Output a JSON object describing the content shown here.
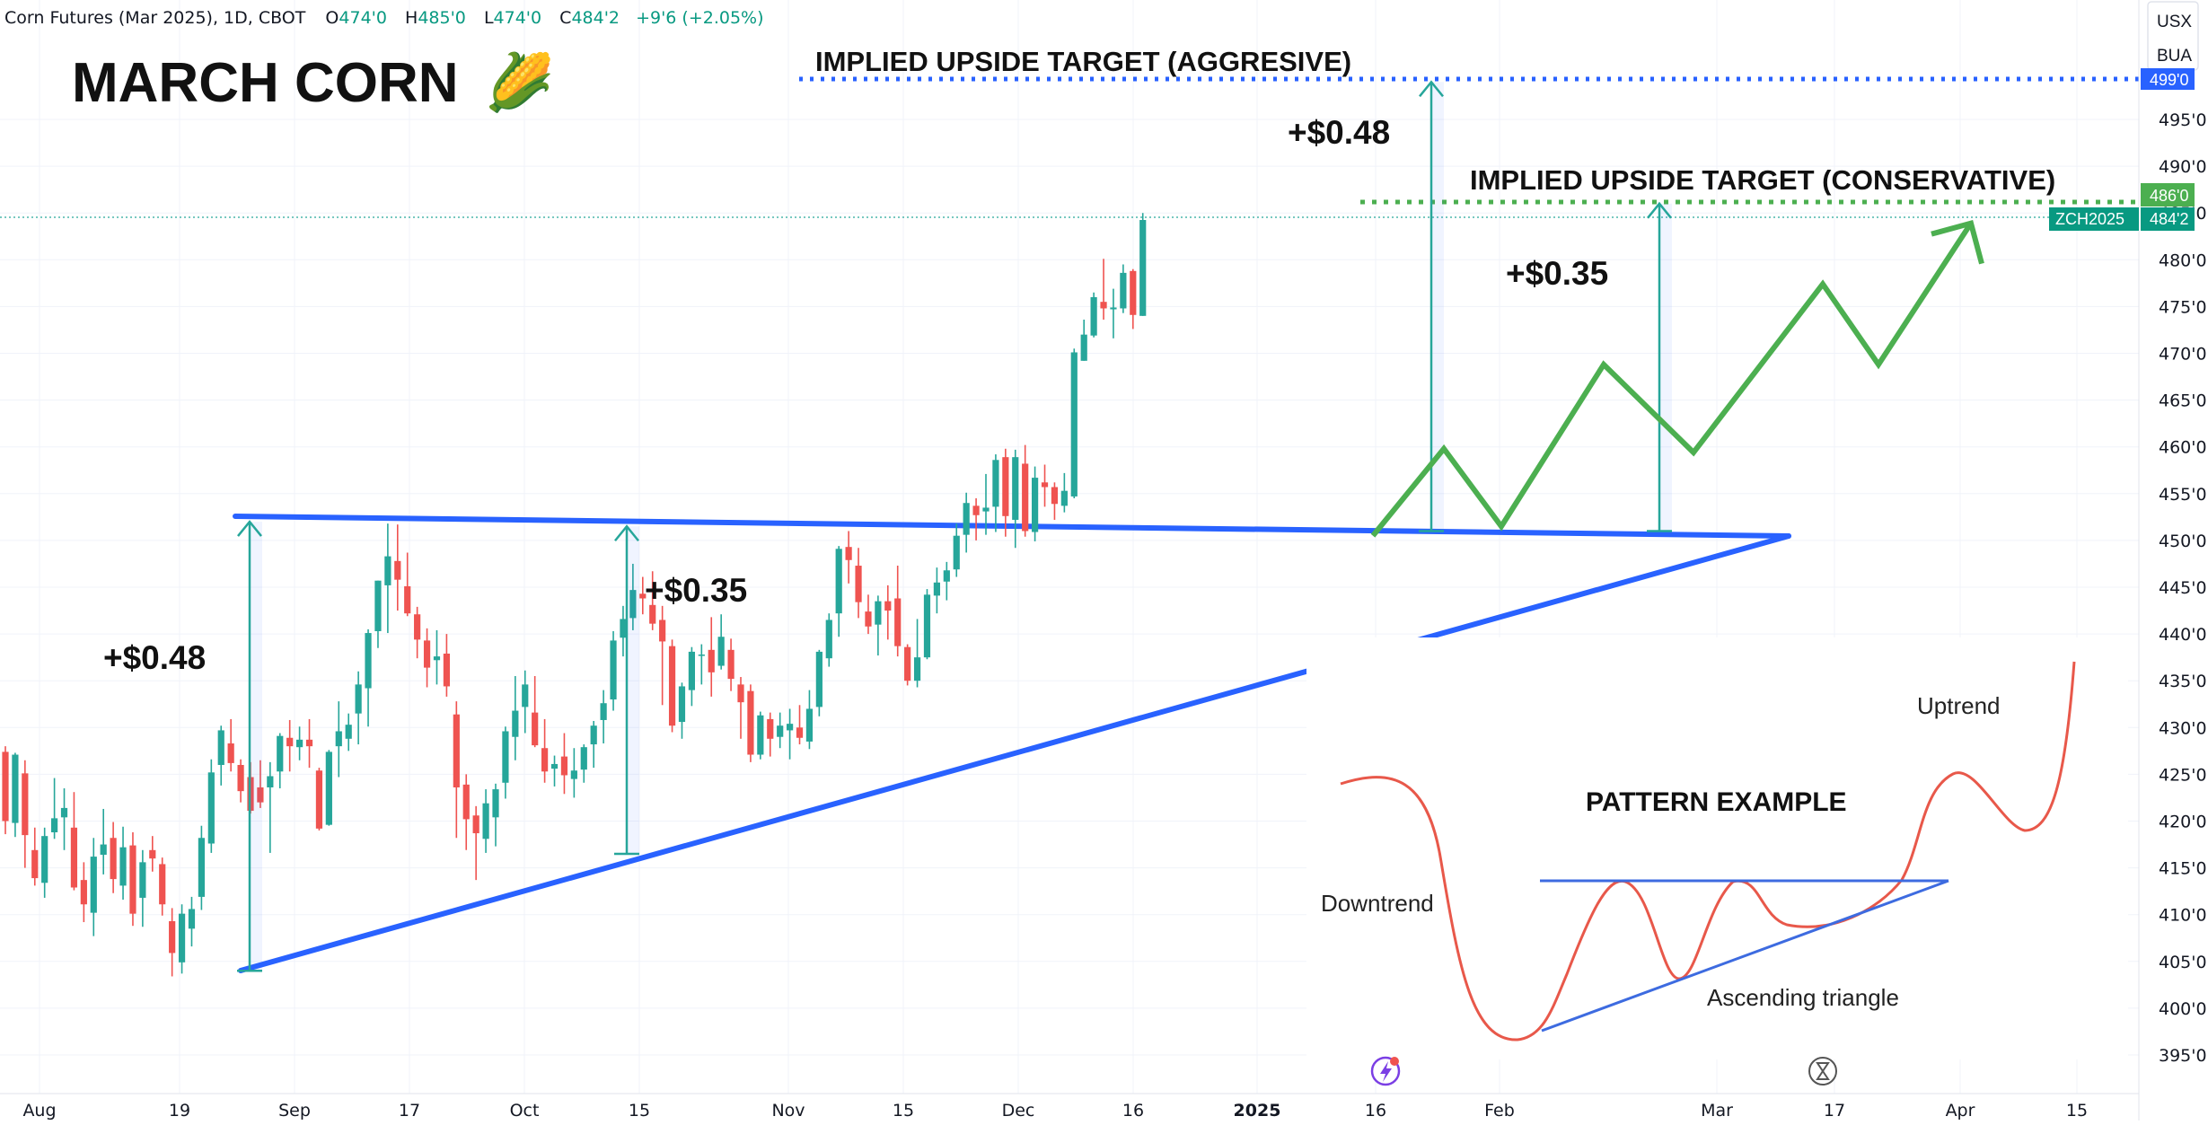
{
  "header": {
    "symbol": "Corn Futures (Mar 2025), 1D, CBOT",
    "open_label": "O",
    "open": "474'0",
    "high_label": "H",
    "high": "485'0",
    "low_label": "L",
    "low": "474'0",
    "close_label": "C",
    "close": "484'2",
    "change": "+9'6 (+2.05%)"
  },
  "title": "MARCH CORN",
  "corn_emoji": "🌽",
  "currency_menu": [
    "USX",
    "BUA"
  ],
  "price_badges": {
    "aggressive_target": "499'0",
    "conservative_target": "486'0",
    "last_price": "484'2",
    "ticker": "ZCH2025"
  },
  "annotations": {
    "aggressive_label": "IMPLIED UPSIDE TARGET (AGGRESIVE)",
    "conservative_label": "IMPLIED UPSIDE TARGET (CONSERVATIVE)",
    "measure_left": "+$0.48",
    "measure_mid": "+$0.35",
    "measure_proj_big": "+$0.48",
    "measure_proj_small": "+$0.35"
  },
  "inset": {
    "title": "PATTERN EXAMPLE",
    "downtrend": "Downtrend",
    "uptrend": "Uptrend",
    "triangle": "Ascending triangle"
  },
  "colors": {
    "bull": "#26a69a",
    "bear": "#ef5350",
    "triangle": "#2962ff",
    "projection": "#4caf50",
    "measure": "#26a69a",
    "inset_curve": "#e8584a",
    "inset_line": "#3d6be0"
  },
  "chart_data": {
    "type": "candlestick",
    "title": "MARCH CORN",
    "units": "cents/bu (fractions in eighths)",
    "y_ticks": [
      "495'0",
      "490'0",
      "485'0",
      "480'0",
      "475'0",
      "470'0",
      "465'0",
      "460'0",
      "455'0",
      "450'0",
      "445'0",
      "440'0",
      "435'0",
      "430'0",
      "425'0",
      "420'0",
      "415'0",
      "410'0",
      "405'0",
      "400'0",
      "395'0"
    ],
    "ylim": [
      393,
      500
    ],
    "x_ticks": [
      "Aug",
      "19",
      "Sep",
      "17",
      "Oct",
      "15",
      "Nov",
      "15",
      "Dec",
      "16",
      "2025",
      "16",
      "Feb",
      "Mar",
      "17",
      "Apr",
      "15"
    ],
    "resistance_level": 450.5,
    "aggressive_target": 499,
    "conservative_target": 486,
    "candles": [
      {
        "o": 427.4,
        "h": 428.0,
        "l": 418.6,
        "c": 420.0
      },
      {
        "o": 419.8,
        "h": 427.3,
        "l": 418.3,
        "c": 427.1
      },
      {
        "o": 425.1,
        "h": 426.5,
        "l": 415.0,
        "c": 418.5
      },
      {
        "o": 416.9,
        "h": 419.3,
        "l": 413.1,
        "c": 413.9
      },
      {
        "o": 413.4,
        "h": 419.3,
        "l": 411.8,
        "c": 418.4
      },
      {
        "o": 418.8,
        "h": 424.6,
        "l": 418.1,
        "c": 420.3
      },
      {
        "o": 420.4,
        "h": 423.5,
        "l": 416.9,
        "c": 421.4
      },
      {
        "o": 419.3,
        "h": 423.1,
        "l": 412.6,
        "c": 412.9
      },
      {
        "o": 413.7,
        "h": 415.6,
        "l": 409.2,
        "c": 411.1
      },
      {
        "o": 410.2,
        "h": 418.2,
        "l": 407.7,
        "c": 416.2
      },
      {
        "o": 416.4,
        "h": 421.3,
        "l": 414.3,
        "c": 417.5
      },
      {
        "o": 418.2,
        "h": 419.9,
        "l": 412.3,
        "c": 413.8
      },
      {
        "o": 413.1,
        "h": 419.4,
        "l": 411.6,
        "c": 417.2
      },
      {
        "o": 417.4,
        "h": 418.8,
        "l": 408.8,
        "c": 410.1
      },
      {
        "o": 411.8,
        "h": 416.9,
        "l": 408.7,
        "c": 415.6
      },
      {
        "o": 416.9,
        "h": 418.4,
        "l": 414.6,
        "c": 416.0
      },
      {
        "o": 415.4,
        "h": 416.1,
        "l": 409.9,
        "c": 411.1
      },
      {
        "o": 409.3,
        "h": 410.7,
        "l": 403.4,
        "c": 405.9
      },
      {
        "o": 404.9,
        "h": 411.1,
        "l": 403.7,
        "c": 410.1
      },
      {
        "o": 408.5,
        "h": 411.9,
        "l": 406.6,
        "c": 410.6
      },
      {
        "o": 411.9,
        "h": 419.5,
        "l": 410.5,
        "c": 418.2
      },
      {
        "o": 417.6,
        "h": 426.6,
        "l": 416.6,
        "c": 425.2
      },
      {
        "o": 426.0,
        "h": 430.2,
        "l": 423.8,
        "c": 429.7
      },
      {
        "o": 428.3,
        "h": 430.9,
        "l": 425.3,
        "c": 426.2
      },
      {
        "o": 426.0,
        "h": 426.6,
        "l": 422.0,
        "c": 423.2
      },
      {
        "o": 424.7,
        "h": 426.3,
        "l": 420.8,
        "c": 421.1
      },
      {
        "o": 423.6,
        "h": 426.5,
        "l": 421.4,
        "c": 422.0
      },
      {
        "o": 423.6,
        "h": 426.3,
        "l": 416.6,
        "c": 424.8
      },
      {
        "o": 425.3,
        "h": 429.4,
        "l": 423.5,
        "c": 429.1
      },
      {
        "o": 428.9,
        "h": 430.8,
        "l": 425.3,
        "c": 428.0
      },
      {
        "o": 427.9,
        "h": 430.1,
        "l": 426.5,
        "c": 428.7
      },
      {
        "o": 428.7,
        "h": 430.9,
        "l": 425.7,
        "c": 428.0
      },
      {
        "o": 425.4,
        "h": 425.7,
        "l": 419.0,
        "c": 419.2
      },
      {
        "o": 419.6,
        "h": 427.6,
        "l": 419.5,
        "c": 427.4
      },
      {
        "o": 428.0,
        "h": 432.8,
        "l": 424.7,
        "c": 429.6
      },
      {
        "o": 428.8,
        "h": 431.5,
        "l": 427.5,
        "c": 430.3
      },
      {
        "o": 431.5,
        "h": 436.0,
        "l": 428.2,
        "c": 434.6
      },
      {
        "o": 434.2,
        "h": 440.5,
        "l": 430.1,
        "c": 440.1
      },
      {
        "o": 440.3,
        "h": 445.7,
        "l": 438.5,
        "c": 445.7
      },
      {
        "o": 445.2,
        "h": 451.8,
        "l": 440.1,
        "c": 448.3
      },
      {
        "o": 447.8,
        "h": 451.7,
        "l": 442.5,
        "c": 445.8
      },
      {
        "o": 445.1,
        "h": 448.7,
        "l": 441.9,
        "c": 442.2
      },
      {
        "o": 442.1,
        "h": 442.9,
        "l": 437.4,
        "c": 439.4
      },
      {
        "o": 439.3,
        "h": 440.6,
        "l": 434.3,
        "c": 436.4
      },
      {
        "o": 437.2,
        "h": 440.4,
        "l": 434.6,
        "c": 437.6
      },
      {
        "o": 437.9,
        "h": 440.0,
        "l": 433.3,
        "c": 434.4
      },
      {
        "o": 431.4,
        "h": 432.8,
        "l": 418.2,
        "c": 423.6
      },
      {
        "o": 423.9,
        "h": 425.0,
        "l": 416.9,
        "c": 420.2
      },
      {
        "o": 420.6,
        "h": 421.6,
        "l": 413.7,
        "c": 418.7
      },
      {
        "o": 418.1,
        "h": 423.4,
        "l": 416.6,
        "c": 421.9
      },
      {
        "o": 420.4,
        "h": 424.0,
        "l": 417.3,
        "c": 423.4
      },
      {
        "o": 424.1,
        "h": 430.1,
        "l": 422.4,
        "c": 429.6
      },
      {
        "o": 429.0,
        "h": 435.5,
        "l": 426.5,
        "c": 431.8
      },
      {
        "o": 432.2,
        "h": 436.1,
        "l": 429.4,
        "c": 434.6
      },
      {
        "o": 431.6,
        "h": 435.5,
        "l": 427.9,
        "c": 428.1
      },
      {
        "o": 427.8,
        "h": 430.9,
        "l": 424.1,
        "c": 425.3
      },
      {
        "o": 425.6,
        "h": 427.0,
        "l": 423.7,
        "c": 426.1
      },
      {
        "o": 426.9,
        "h": 429.4,
        "l": 422.9,
        "c": 424.9
      },
      {
        "o": 424.5,
        "h": 427.8,
        "l": 422.5,
        "c": 425.4
      },
      {
        "o": 425.5,
        "h": 428.2,
        "l": 424.1,
        "c": 427.9
      },
      {
        "o": 428.2,
        "h": 430.7,
        "l": 425.7,
        "c": 430.2
      },
      {
        "o": 430.8,
        "h": 434.0,
        "l": 428.3,
        "c": 432.6
      },
      {
        "o": 433.0,
        "h": 440.3,
        "l": 431.8,
        "c": 439.3
      },
      {
        "o": 439.6,
        "h": 443.0,
        "l": 437.6,
        "c": 441.6
      },
      {
        "o": 441.7,
        "h": 447.5,
        "l": 440.4,
        "c": 444.7
      },
      {
        "o": 444.3,
        "h": 446.1,
        "l": 442.1,
        "c": 443.8
      },
      {
        "o": 443.1,
        "h": 446.7,
        "l": 440.4,
        "c": 441.1
      },
      {
        "o": 441.5,
        "h": 443.0,
        "l": 432.4,
        "c": 439.2
      },
      {
        "o": 438.7,
        "h": 439.4,
        "l": 429.5,
        "c": 430.2
      },
      {
        "o": 430.6,
        "h": 434.8,
        "l": 428.8,
        "c": 434.4
      },
      {
        "o": 434.0,
        "h": 438.6,
        "l": 432.3,
        "c": 438.1
      },
      {
        "o": 437.8,
        "h": 438.9,
        "l": 434.6,
        "c": 437.8
      },
      {
        "o": 438.3,
        "h": 441.8,
        "l": 433.3,
        "c": 435.9
      },
      {
        "o": 436.6,
        "h": 442.1,
        "l": 436.2,
        "c": 439.7
      },
      {
        "o": 438.3,
        "h": 439.5,
        "l": 433.9,
        "c": 435.2
      },
      {
        "o": 434.6,
        "h": 435.4,
        "l": 428.8,
        "c": 432.7
      },
      {
        "o": 433.9,
        "h": 434.6,
        "l": 426.3,
        "c": 427.1
      },
      {
        "o": 427.1,
        "h": 431.7,
        "l": 426.6,
        "c": 431.3
      },
      {
        "o": 430.9,
        "h": 431.6,
        "l": 426.9,
        "c": 428.8
      },
      {
        "o": 429.0,
        "h": 431.6,
        "l": 427.8,
        "c": 430.2
      },
      {
        "o": 429.7,
        "h": 432.0,
        "l": 426.6,
        "c": 430.4
      },
      {
        "o": 430.0,
        "h": 432.4,
        "l": 428.2,
        "c": 428.9
      },
      {
        "o": 428.5,
        "h": 434.0,
        "l": 427.7,
        "c": 432.0
      },
      {
        "o": 432.2,
        "h": 438.3,
        "l": 431.2,
        "c": 438.1
      },
      {
        "o": 437.4,
        "h": 442.2,
        "l": 436.5,
        "c": 441.5
      },
      {
        "o": 442.2,
        "h": 449.4,
        "l": 439.7,
        "c": 449.1
      },
      {
        "o": 449.3,
        "h": 451.0,
        "l": 445.4,
        "c": 447.9
      },
      {
        "o": 447.3,
        "h": 449.2,
        "l": 441.7,
        "c": 443.4
      },
      {
        "o": 442.4,
        "h": 444.2,
        "l": 440.0,
        "c": 440.8
      },
      {
        "o": 441.0,
        "h": 444.1,
        "l": 437.7,
        "c": 443.5
      },
      {
        "o": 443.5,
        "h": 445.2,
        "l": 439.4,
        "c": 442.5
      },
      {
        "o": 443.8,
        "h": 447.3,
        "l": 437.6,
        "c": 438.7
      },
      {
        "o": 438.6,
        "h": 438.9,
        "l": 434.5,
        "c": 435.0
      },
      {
        "o": 435.0,
        "h": 441.6,
        "l": 434.3,
        "c": 437.5
      },
      {
        "o": 437.5,
        "h": 444.8,
        "l": 437.3,
        "c": 444.2
      },
      {
        "o": 444.1,
        "h": 447.1,
        "l": 442.2,
        "c": 445.5
      },
      {
        "o": 445.6,
        "h": 447.7,
        "l": 443.6,
        "c": 446.8
      },
      {
        "o": 446.9,
        "h": 451.8,
        "l": 446.1,
        "c": 450.5
      },
      {
        "o": 450.6,
        "h": 455.1,
        "l": 448.7,
        "c": 454.0
      },
      {
        "o": 453.7,
        "h": 454.5,
        "l": 450.0,
        "c": 452.7
      },
      {
        "o": 453.1,
        "h": 457.1,
        "l": 450.6,
        "c": 453.5
      },
      {
        "o": 453.6,
        "h": 459.2,
        "l": 450.9,
        "c": 458.6
      },
      {
        "o": 458.9,
        "h": 459.8,
        "l": 450.4,
        "c": 452.6
      },
      {
        "o": 452.2,
        "h": 459.7,
        "l": 449.2,
        "c": 458.9
      },
      {
        "o": 458.2,
        "h": 460.2,
        "l": 450.4,
        "c": 451.0
      },
      {
        "o": 450.9,
        "h": 457.9,
        "l": 449.9,
        "c": 456.7
      },
      {
        "o": 456.2,
        "h": 458.1,
        "l": 453.6,
        "c": 455.7
      },
      {
        "o": 455.7,
        "h": 456.2,
        "l": 452.2,
        "c": 453.9
      },
      {
        "o": 453.7,
        "h": 457.2,
        "l": 453.0,
        "c": 455.3
      },
      {
        "o": 454.7,
        "h": 470.5,
        "l": 454.5,
        "c": 470.1
      },
      {
        "o": 469.2,
        "h": 473.6,
        "l": 469.2,
        "c": 472.0
      },
      {
        "o": 471.9,
        "h": 476.5,
        "l": 471.7,
        "c": 476.0
      },
      {
        "o": 475.5,
        "h": 480.1,
        "l": 473.6,
        "c": 474.8
      },
      {
        "o": 474.7,
        "h": 476.9,
        "l": 471.6,
        "c": 474.9
      },
      {
        "o": 474.8,
        "h": 479.5,
        "l": 474.3,
        "c": 478.6
      },
      {
        "o": 478.8,
        "h": 479.0,
        "l": 472.6,
        "c": 474.1
      },
      {
        "o": 474.0,
        "h": 485.0,
        "l": 474.0,
        "c": 484.25
      }
    ],
    "measure_segments": [
      {
        "label": "+$0.48",
        "from": 404,
        "to": 452
      },
      {
        "label": "+$0.35",
        "from": 416.5,
        "to": 451.5
      },
      {
        "label": "+$0.48",
        "from": 451,
        "to": 499
      },
      {
        "label": "+$0.35",
        "from": 451,
        "to": 486
      }
    ],
    "projection_path": [
      450.5,
      459.8,
      451.5,
      468.8,
      459.4,
      477.4,
      468.8,
      483.9
    ]
  }
}
